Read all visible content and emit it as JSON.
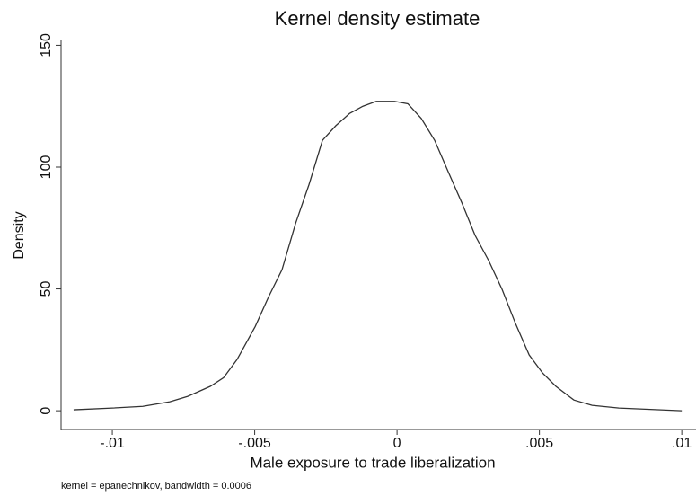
{
  "chart_data": {
    "type": "line",
    "title": "Kernel density estimate",
    "x_label": "Male exposure to trade liberalization",
    "y_label": "Density",
    "note": "kernel = epanechnikov, bandwidth = 0.0006",
    "x": [
      -0.01136,
      -0.01,
      -0.00893,
      -0.00798,
      -0.00735,
      -0.00656,
      -0.00609,
      -0.00562,
      -0.00498,
      -0.00451,
      -0.00404,
      -0.00356,
      -0.00309,
      -0.00262,
      -0.00215,
      -0.00167,
      -0.0012,
      -0.00073,
      -9e-05,
      0.00038,
      0.00085,
      0.00132,
      0.0018,
      0.00227,
      0.00274,
      0.00322,
      0.00369,
      0.00416,
      0.00464,
      0.00511,
      0.00558,
      0.00621,
      0.00685,
      0.00779,
      0.01
    ],
    "series": [
      {
        "name": "Density",
        "color": "#333333",
        "values": [
          0.4,
          1.1,
          1.8,
          3.7,
          5.9,
          10,
          13.6,
          21,
          34.6,
          46.8,
          57.9,
          77,
          92.9,
          111,
          117,
          122,
          125,
          127,
          127,
          126,
          120,
          111,
          98,
          85.5,
          72,
          61.6,
          49.8,
          35.8,
          22.9,
          15.5,
          10,
          4.4,
          2.2,
          1.1,
          0
        ]
      }
    ],
    "xlim": [
      -0.0118,
      0.0105
    ],
    "ylim": [
      -7.7,
      152
    ],
    "xticks": [
      {
        "value": -0.01,
        "label": "-.01"
      },
      {
        "value": -0.005,
        "label": "-.005"
      },
      {
        "value": 0,
        "label": "0"
      },
      {
        "value": 0.005,
        "label": ".005"
      },
      {
        "value": 0.01,
        "label": ".01"
      }
    ],
    "yticks": [
      0,
      50,
      100,
      150
    ],
    "grid": false
  }
}
